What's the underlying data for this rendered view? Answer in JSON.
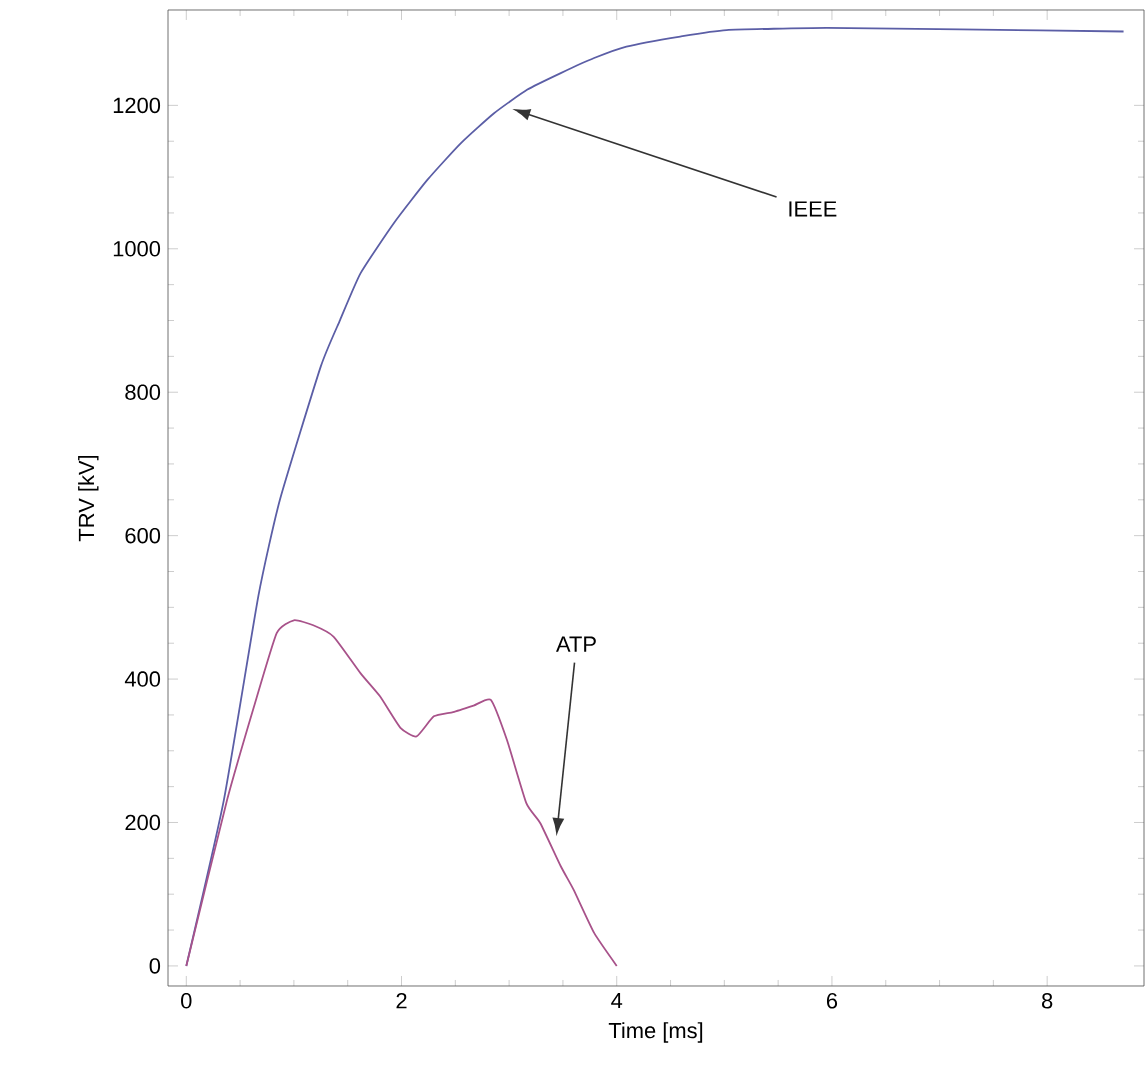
{
  "chart_data": {
    "type": "line",
    "xlabel": "Time [ms]",
    "ylabel": "TRV [kV]",
    "xlim": [
      -0.17,
      8.9
    ],
    "ylim": [
      -28,
      1333
    ],
    "xticks": [
      0,
      2,
      4,
      6,
      8
    ],
    "yticks": [
      0,
      200,
      400,
      600,
      800,
      1000,
      1200
    ],
    "grid": false,
    "marker": "none",
    "line_style": "solid",
    "series": [
      {
        "color": "#5b5ea6",
        "x": [
          0,
          0.35,
          0.67,
          0.87,
          1.25,
          1.43,
          1.62,
          1.93,
          2.24,
          2.55,
          2.86,
          3.17,
          3.48,
          3.79,
          4.09,
          4.59,
          5.02,
          5.95,
          7.19,
          8.71
        ],
        "values": [
          0,
          232,
          516,
          650,
          836,
          901,
          966,
          1036,
          1096,
          1147,
          1189,
          1222,
          1245,
          1266,
          1282,
          1296,
          1305,
          1308,
          1306,
          1303
        ]
      },
      {
        "color": "#a8528a",
        "x": [
          0,
          0.38,
          0.63,
          0.84,
          1.0,
          1.18,
          1.37,
          1.62,
          1.8,
          1.99,
          2.14,
          2.3,
          2.48,
          2.67,
          2.83,
          2.98,
          3.16,
          3.29,
          3.48,
          3.6,
          3.79,
          4.0
        ],
        "values": [
          0,
          232,
          362,
          464,
          482,
          475,
          459,
          408,
          376,
          332,
          320,
          348,
          354,
          363,
          371,
          315,
          227,
          199,
          139,
          106,
          46,
          0
        ]
      }
    ],
    "annotations": [
      {
        "text": "IEEE",
        "x": 3.03,
        "y": 1195
      },
      {
        "text": "ATP",
        "x": 3.44,
        "y": 181
      }
    ]
  }
}
